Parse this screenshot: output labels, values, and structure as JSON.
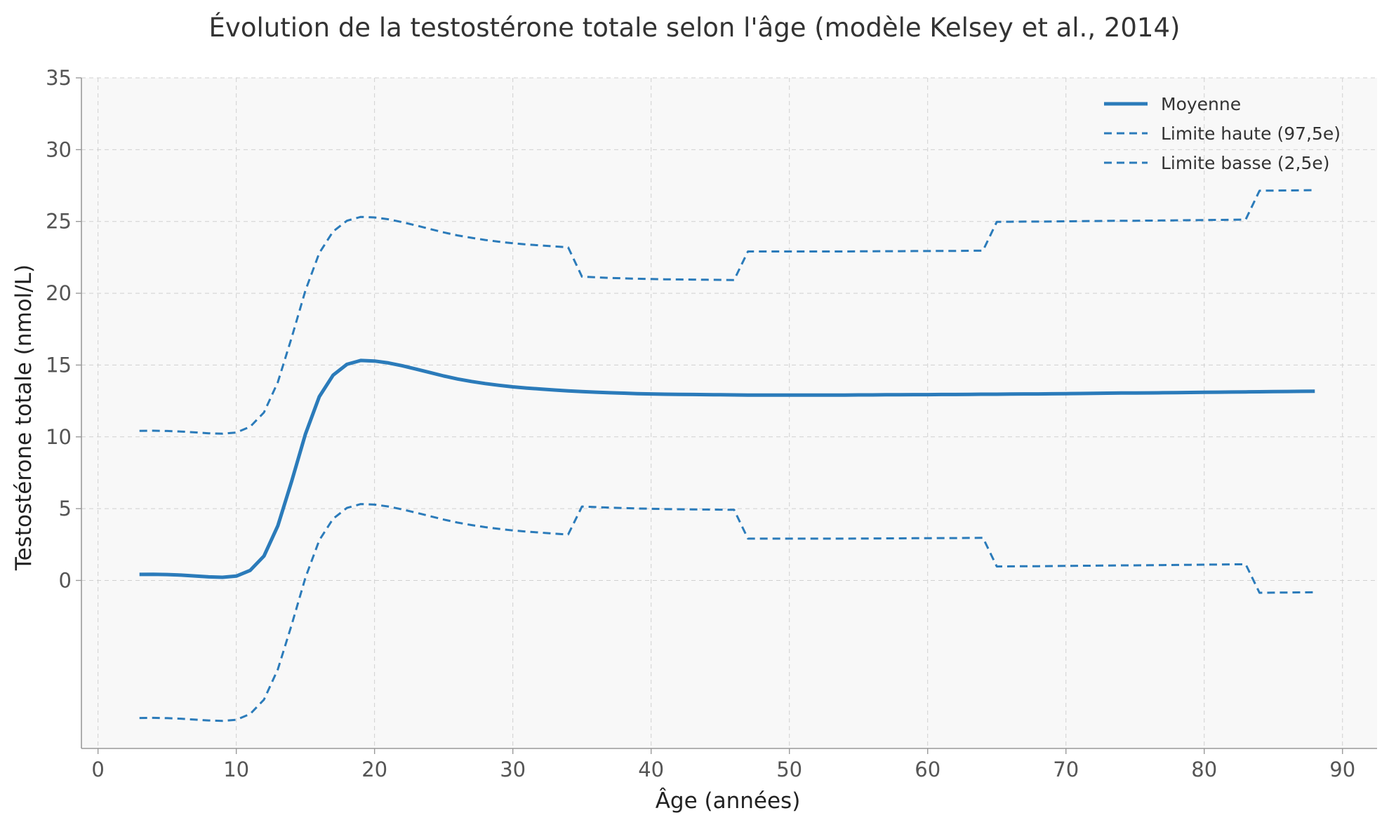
{
  "chart_data": {
    "type": "line",
    "title": "Évolution de la testostérone totale selon l'âge (modèle Kelsey et al., 2014)",
    "xlabel": "Âge (années)",
    "ylabel": "Testostérone totale (nmol/L)",
    "xlim": [
      -1.2,
      92.5
    ],
    "ylim": [
      -11.7,
      35
    ],
    "xticks": [
      "0",
      "10",
      "20",
      "30",
      "40",
      "50",
      "60",
      "70",
      "80",
      "90"
    ],
    "yticks": [
      "0",
      "5",
      "10",
      "15",
      "20",
      "25",
      "30",
      "35"
    ],
    "grid": true,
    "legend_position": "top-right",
    "x": [
      3,
      4,
      5,
      6,
      7,
      8,
      9,
      10,
      11,
      12,
      13,
      14,
      15,
      16,
      17,
      18,
      19,
      20,
      21,
      22,
      23,
      24,
      25,
      26,
      27,
      28,
      29,
      30,
      31,
      32,
      33,
      34,
      35,
      36,
      37,
      38,
      39,
      40,
      41,
      42,
      43,
      44,
      45,
      46,
      47,
      48,
      49,
      50,
      51,
      52,
      53,
      54,
      55,
      56,
      57,
      58,
      59,
      60,
      61,
      62,
      63,
      64,
      65,
      66,
      67,
      68,
      69,
      70,
      71,
      72,
      73,
      74,
      75,
      76,
      77,
      78,
      79,
      80,
      81,
      82,
      83,
      84,
      85,
      86,
      87,
      88
    ],
    "series": [
      {
        "name": "Moyenne",
        "style": "solid",
        "color": "#2b7bba",
        "values": [
          0.42,
          0.43,
          0.41,
          0.37,
          0.31,
          0.25,
          0.22,
          0.3,
          0.7,
          1.7,
          3.8,
          6.9,
          10.2,
          12.8,
          14.3,
          15.05,
          15.32,
          15.28,
          15.15,
          14.95,
          14.72,
          14.48,
          14.24,
          14.03,
          13.86,
          13.71,
          13.59,
          13.48,
          13.4,
          13.33,
          13.26,
          13.2,
          13.15,
          13.11,
          13.07,
          13.04,
          13.01,
          12.99,
          12.97,
          12.96,
          12.95,
          12.94,
          12.93,
          12.92,
          12.91,
          12.91,
          12.91,
          12.91,
          12.91,
          12.91,
          12.91,
          12.91,
          12.92,
          12.92,
          12.93,
          12.93,
          12.94,
          12.94,
          12.95,
          12.95,
          12.96,
          12.97,
          12.97,
          12.98,
          12.99,
          12.99,
          13.0,
          13.01,
          13.02,
          13.03,
          13.04,
          13.05,
          13.05,
          13.06,
          13.07,
          13.08,
          13.09,
          13.1,
          13.11,
          13.12,
          13.13,
          13.14,
          13.15,
          13.16,
          13.17,
          13.18
        ]
      },
      {
        "name": "Limite haute (97,5e)",
        "style": "dashed",
        "color": "#2b7bba",
        "values": [
          10.42,
          10.43,
          10.41,
          10.37,
          10.31,
          10.25,
          10.22,
          10.3,
          10.7,
          11.7,
          13.8,
          16.9,
          20.2,
          22.8,
          24.3,
          25.05,
          25.32,
          25.28,
          25.15,
          24.95,
          24.72,
          24.48,
          24.24,
          24.03,
          23.86,
          23.71,
          23.59,
          23.48,
          23.4,
          23.33,
          23.26,
          23.2,
          21.15,
          21.11,
          21.07,
          21.04,
          21.01,
          20.99,
          20.97,
          20.96,
          20.95,
          20.94,
          20.93,
          20.92,
          22.91,
          22.91,
          22.91,
          22.91,
          22.91,
          22.91,
          22.91,
          22.91,
          22.92,
          22.92,
          22.93,
          22.93,
          22.94,
          22.94,
          22.95,
          22.95,
          22.96,
          22.97,
          24.97,
          24.98,
          24.99,
          24.99,
          25.0,
          25.01,
          25.02,
          25.03,
          25.04,
          25.05,
          25.05,
          25.06,
          25.07,
          25.08,
          25.09,
          25.1,
          25.11,
          25.12,
          25.13,
          27.14,
          27.15,
          27.16,
          27.17,
          27.18
        ]
      },
      {
        "name": "Limite basse (2,5e)",
        "style": "dashed",
        "color": "#2b7bba",
        "values": [
          -9.58,
          -9.57,
          -9.59,
          -9.63,
          -9.69,
          -9.75,
          -9.78,
          -9.7,
          -9.3,
          -8.3,
          -6.2,
          -3.1,
          0.2,
          2.8,
          4.3,
          5.05,
          5.32,
          5.28,
          5.15,
          4.95,
          4.72,
          4.48,
          4.24,
          4.03,
          3.86,
          3.71,
          3.59,
          3.48,
          3.4,
          3.33,
          3.26,
          3.2,
          5.15,
          5.11,
          5.07,
          5.04,
          5.01,
          4.99,
          4.97,
          4.96,
          4.95,
          4.94,
          4.93,
          4.92,
          2.91,
          2.91,
          2.91,
          2.91,
          2.91,
          2.91,
          2.91,
          2.91,
          2.92,
          2.92,
          2.93,
          2.93,
          2.94,
          2.94,
          2.95,
          2.95,
          2.96,
          2.97,
          0.97,
          0.98,
          0.99,
          0.99,
          1.0,
          1.01,
          1.02,
          1.03,
          1.04,
          1.05,
          1.05,
          1.06,
          1.07,
          1.08,
          1.09,
          1.1,
          1.11,
          1.12,
          1.13,
          -0.86,
          -0.85,
          -0.84,
          -0.83,
          -0.82
        ]
      }
    ]
  },
  "colors": {
    "series": "#2b7bba",
    "plot_background": "#f8f8f8",
    "grid": "#d0d0d0",
    "axis": "#999999"
  }
}
